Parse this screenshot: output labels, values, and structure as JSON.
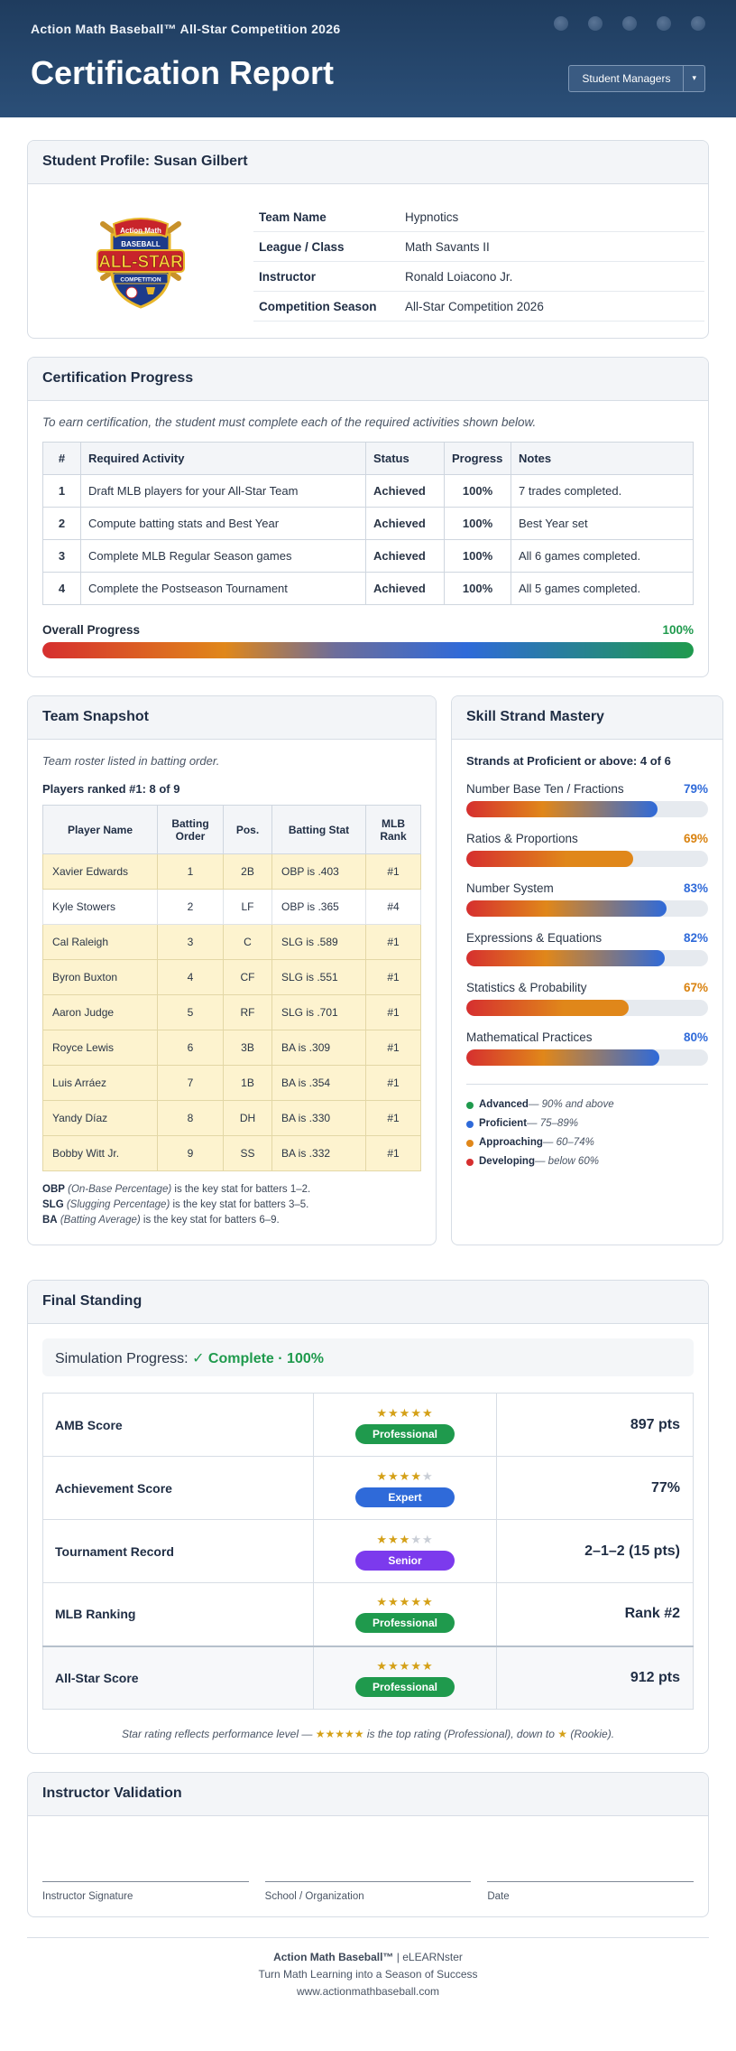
{
  "header": {
    "subtitle": "Action Math Baseball™ All-Star Competition 2026",
    "title": "Certification Report",
    "button_label": "Student Managers",
    "caret": "▾"
  },
  "profile": {
    "heading": "Student Profile: Susan Gilbert",
    "logo_text": {
      "top": "Action Math",
      "mid": "BASEBALL",
      "big": "ALL-STAR",
      "bottom": "COMPETITION"
    },
    "fields": [
      {
        "label": "Team Name",
        "value": "Hypnotics"
      },
      {
        "label": "League / Class",
        "value": "Math Savants II"
      },
      {
        "label": "Instructor",
        "value": "Ronald Loiacono Jr."
      },
      {
        "label": "Competition Season",
        "value": "All-Star Competition 2026"
      }
    ]
  },
  "certification": {
    "heading": "Certification Progress",
    "intro": "To earn certification, the student must complete each of the required activities shown below.",
    "columns": [
      "#",
      "Required Activity",
      "Status",
      "Progress",
      "Notes"
    ],
    "rows": [
      {
        "num": "1",
        "activity": "Draft MLB players for your All-Star Team",
        "status": "Achieved",
        "progress": "100%",
        "notes": "7 trades completed."
      },
      {
        "num": "2",
        "activity": "Compute batting stats and Best Year",
        "status": "Achieved",
        "progress": "100%",
        "notes": "Best Year set"
      },
      {
        "num": "3",
        "activity": "Complete MLB Regular Season games",
        "status": "Achieved",
        "progress": "100%",
        "notes": "All 6 games completed."
      },
      {
        "num": "4",
        "activity": "Complete the Postseason Tournament",
        "status": "Achieved",
        "progress": "100%",
        "notes": "All 5 games completed."
      }
    ],
    "overall_label": "Overall Progress",
    "overall_value": "100%",
    "overall_fraction": 1.0
  },
  "team": {
    "heading": "Team Snapshot",
    "roster_note": "Team roster listed in batting order.",
    "ranked": "Players ranked #1: 8 of 9",
    "columns": [
      "Player Name",
      "Batting Order",
      "Pos.",
      "Batting Stat",
      "MLB Rank"
    ],
    "players": [
      {
        "name": "Xavier Edwards",
        "order": "1",
        "pos": "2B",
        "stat": "OBP is .403",
        "rank": "#1",
        "highlight": true
      },
      {
        "name": "Kyle Stowers",
        "order": "2",
        "pos": "LF",
        "stat": "OBP is .365",
        "rank": "#4",
        "highlight": false
      },
      {
        "name": "Cal Raleigh",
        "order": "3",
        "pos": "C",
        "stat": "SLG is .589",
        "rank": "#1",
        "highlight": true
      },
      {
        "name": "Byron Buxton",
        "order": "4",
        "pos": "CF",
        "stat": "SLG is .551",
        "rank": "#1",
        "highlight": true
      },
      {
        "name": "Aaron Judge",
        "order": "5",
        "pos": "RF",
        "stat": "SLG is .701",
        "rank": "#1",
        "highlight": true
      },
      {
        "name": "Royce Lewis",
        "order": "6",
        "pos": "3B",
        "stat": "BA is .309",
        "rank": "#1",
        "highlight": true
      },
      {
        "name": "Luis Arráez",
        "order": "7",
        "pos": "1B",
        "stat": "BA is .354",
        "rank": "#1",
        "highlight": true
      },
      {
        "name": "Yandy Díaz",
        "order": "8",
        "pos": "DH",
        "stat": "BA is .330",
        "rank": "#1",
        "highlight": true
      },
      {
        "name": "Bobby Witt Jr.",
        "order": "9",
        "pos": "SS",
        "stat": "BA is .332",
        "rank": "#1",
        "highlight": true
      }
    ],
    "notes": [
      {
        "abbr": "OBP",
        "desc": "(On-Base Percentage)",
        "rest": " is the key stat for batters 1–2."
      },
      {
        "abbr": "SLG",
        "desc": "(Slugging Percentage)",
        "rest": " is the key stat for batters 3–5."
      },
      {
        "abbr": "BA",
        "desc": "(Batting Average)",
        "rest": " is the key stat for batters 6–9."
      }
    ]
  },
  "skill": {
    "heading": "Skill Strand Mastery",
    "summary": "Strands at Proficient or above: 4 of 6",
    "strands": [
      {
        "name": "Number Base Ten / Fractions",
        "value": "79%",
        "fraction": 0.79,
        "color": "#2f6ad9",
        "level": "prof"
      },
      {
        "name": "Ratios & Proportions",
        "value": "69%",
        "fraction": 0.69,
        "color": "#d9820f",
        "level": "appr"
      },
      {
        "name": "Number System",
        "value": "83%",
        "fraction": 0.83,
        "color": "#2f6ad9",
        "level": "prof"
      },
      {
        "name": "Expressions & Equations",
        "value": "82%",
        "fraction": 0.82,
        "color": "#2f6ad9",
        "level": "prof"
      },
      {
        "name": "Statistics & Probability",
        "value": "67%",
        "fraction": 0.67,
        "color": "#d9820f",
        "level": "appr"
      },
      {
        "name": "Mathematical Practices",
        "value": "80%",
        "fraction": 0.8,
        "color": "#2f6ad9",
        "level": "prof"
      }
    ],
    "levels": [
      {
        "name": "Advanced",
        "range": " — 90% and above",
        "color": "#1f9a4d"
      },
      {
        "name": "Proficient",
        "range": " — 75–89%",
        "color": "#2f6ad9"
      },
      {
        "name": "Approaching",
        "range": " — 60–74%",
        "color": "#e0871a"
      },
      {
        "name": "Developing",
        "range": " — below 60%",
        "color": "#d62f2f"
      }
    ]
  },
  "final": {
    "heading": "Final Standing",
    "sim_label": "Simulation Progress:",
    "sim_status": "✓ Complete · 100%",
    "rows": [
      {
        "label": "AMB Score",
        "stars": 5,
        "badge": "Professional",
        "badge_color": "#1f9a4d",
        "value": "897 pts"
      },
      {
        "label": "Achievement Score",
        "stars": 4,
        "badge": "Expert",
        "badge_color": "#2f6ad9",
        "value": "77%"
      },
      {
        "label": "Tournament Record",
        "stars": 3,
        "badge": "Senior",
        "badge_color": "#7c3aed",
        "value": "2–1–2 (15 pts)"
      },
      {
        "label": "MLB Ranking",
        "stars": 5,
        "badge": "Professional",
        "badge_color": "#1f9a4d",
        "value": "Rank #2"
      },
      {
        "label": "All-Star Score",
        "stars": 5,
        "badge": "Professional",
        "badge_color": "#1f9a4d",
        "value": "912 pts"
      }
    ],
    "note_a": "Star rating reflects performance level — ",
    "note_stars5": "★★★★★",
    "note_b": " is the top rating (Professional), down to ",
    "note_star1": "★",
    "note_c": " (Rookie)."
  },
  "instructor": {
    "heading": "Instructor Validation",
    "fields": [
      "Instructor Signature",
      "School / Organization",
      "Date"
    ]
  },
  "footer": {
    "brand": "Action Math Baseball™",
    "brand_rest": " | eLEARNster",
    "tagline": "Turn Math Learning into a Season of Success",
    "url": "www.actionmathbaseball.com"
  }
}
